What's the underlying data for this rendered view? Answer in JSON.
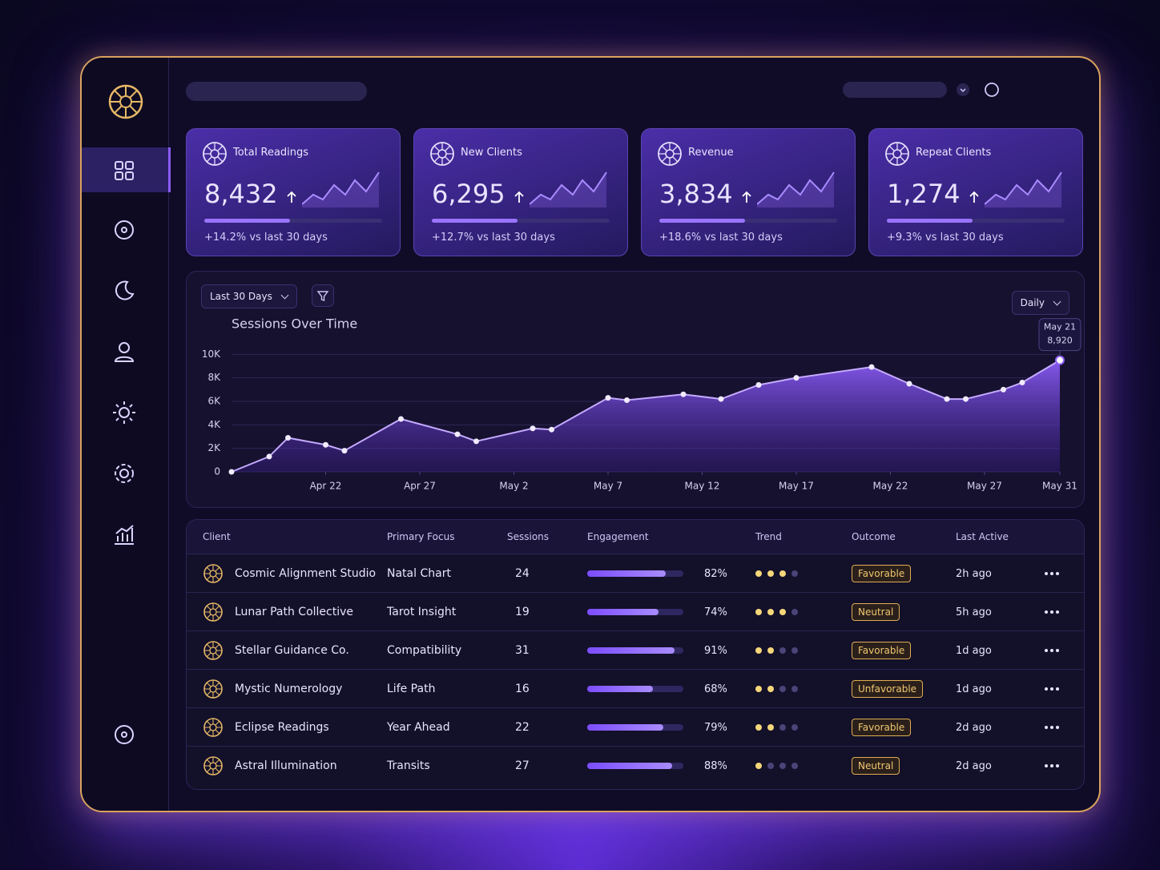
{
  "kpis": [
    {
      "title": "Total Readings",
      "value": "8,432",
      "change": "+14.2% vs last 30 days"
    },
    {
      "title": "New Clients",
      "value": "6,295",
      "change": "+12.7% vs last 30 days"
    },
    {
      "title": "Revenue",
      "value": "3,834",
      "change": "+18.6% vs last 30 days"
    },
    {
      "title": "Repeat Clients",
      "value": "1,274",
      "change": "+9.3% vs last 30 days"
    }
  ],
  "controls": {
    "range": "Last 30 Days",
    "interval": "Daily"
  },
  "chart_data": {
    "type": "area",
    "title": "Sessions Over Time",
    "color": "#8b5cf6",
    "x": [
      0,
      2,
      3,
      5,
      6,
      9,
      12,
      13,
      16,
      17,
      20,
      21,
      24,
      26,
      28,
      30,
      34,
      36,
      38,
      39,
      41,
      42,
      44
    ],
    "values": [
      0,
      1300,
      2900,
      2300,
      1800,
      4500,
      3200,
      2600,
      3700,
      3600,
      6300,
      6100,
      6600,
      6200,
      7400,
      8000,
      8920,
      7500,
      6200,
      6200,
      7000,
      7600,
      9500
    ],
    "xlim": [
      0,
      44
    ],
    "xticks": [
      {
        "value": 5,
        "label": "Apr 22"
      },
      {
        "value": 10,
        "label": "Apr 27"
      },
      {
        "value": 15,
        "label": "May 2"
      },
      {
        "value": 20,
        "label": "May 7"
      },
      {
        "value": 25,
        "label": "May 12"
      },
      {
        "value": 30,
        "label": "May 17"
      },
      {
        "value": 35,
        "label": "May 22"
      },
      {
        "value": 40,
        "label": "May 27"
      },
      {
        "value": 44,
        "label": "May 31"
      }
    ],
    "ylim": [
      0,
      10500
    ],
    "yticks": [
      0,
      {
        "value": 2000,
        "label": "2K"
      },
      {
        "value": 4000,
        "label": "4K"
      },
      {
        "value": 6000,
        "label": "6K"
      },
      {
        "value": 8000,
        "label": "8K"
      },
      {
        "value": 10000,
        "label": "10K"
      }
    ],
    "grid": true,
    "annotation": {
      "date": "May 21",
      "text": "8,920"
    }
  },
  "table": {
    "columns": [
      "Client",
      "Primary Focus",
      "Sessions",
      "Engagement",
      "Trend",
      "Outcome",
      "Last Active"
    ],
    "rows": [
      {
        "client": "Cosmic Alignment Studio",
        "focus": "Natal Chart",
        "sessions": "24",
        "engagement": 82,
        "engagement_label": "82%",
        "trend": 3,
        "outcome": "Favorable",
        "last_active": "2h ago"
      },
      {
        "client": "Lunar Path Collective",
        "focus": "Tarot Insight",
        "sessions": "19",
        "engagement": 74,
        "engagement_label": "74%",
        "trend": 3,
        "outcome": "Neutral",
        "last_active": "5h ago"
      },
      {
        "client": "Stellar Guidance Co.",
        "focus": "Compatibility",
        "sessions": "31",
        "engagement": 91,
        "engagement_label": "91%",
        "trend": 2,
        "outcome": "Favorable",
        "last_active": "1d ago"
      },
      {
        "client": "Mystic Numerology",
        "focus": "Life Path",
        "sessions": "16",
        "engagement": 68,
        "engagement_label": "68%",
        "trend": 2,
        "outcome": "Unfavorable",
        "last_active": "1d ago"
      },
      {
        "client": "Eclipse Readings",
        "focus": "Year Ahead",
        "sessions": "22",
        "engagement": 79,
        "engagement_label": "79%",
        "trend": 2,
        "outcome": "Favorable",
        "last_active": "2d ago"
      },
      {
        "client": "Astral Illumination",
        "focus": "Transits",
        "sessions": "27",
        "engagement": 88,
        "engagement_label": "88%",
        "trend": 1,
        "outcome": "Neutral",
        "last_active": "2d ago"
      }
    ]
  }
}
